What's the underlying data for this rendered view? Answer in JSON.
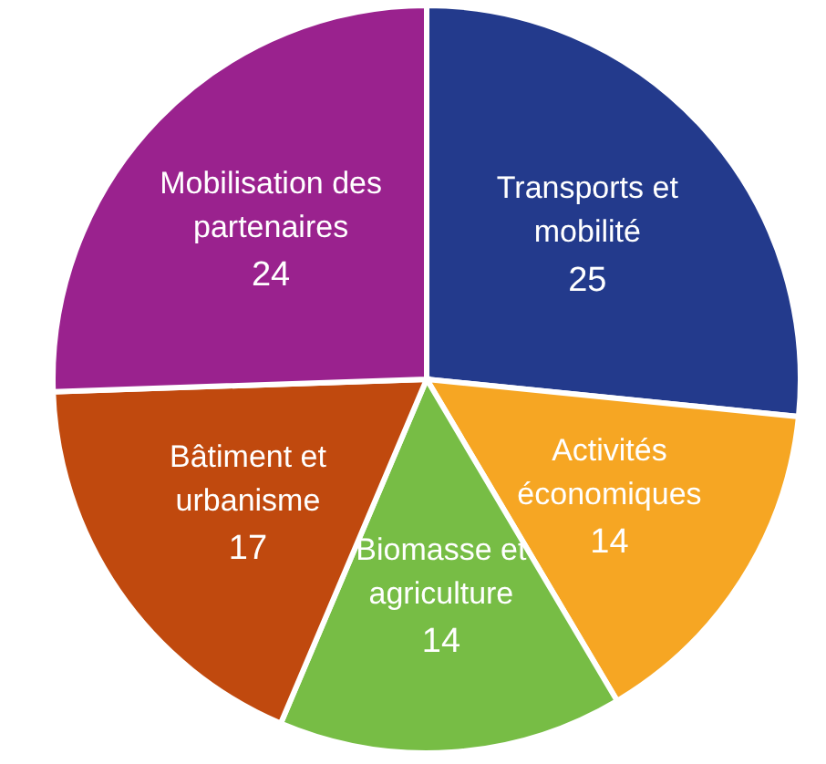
{
  "chart_data": {
    "type": "pie",
    "categories": [
      "Transports et mobilité",
      "Activités économiques",
      "Biomasse et agriculture",
      "Bâtiment et urbanisme",
      "Mobilisation des partenaires"
    ],
    "values": [
      25,
      14,
      14,
      17,
      24
    ],
    "colors": [
      "#233a8c",
      "#f6a623",
      "#77bd45",
      "#c0490e",
      "#9a228e"
    ],
    "data_labels": true,
    "legend": false
  }
}
